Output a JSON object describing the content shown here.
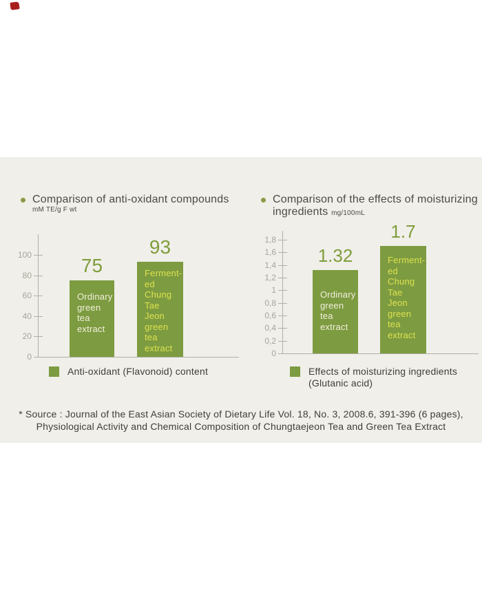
{
  "colors": {
    "panel_bg": "#f0efe9",
    "bar_green": "#7d9b40",
    "bullet_green": "#8a9a45",
    "value_green": "#7f9d3c",
    "bar_text_cream": "#f2f0df",
    "bar_text_yellow": "#dce24f",
    "axis_gray": "#b0afa7",
    "tick_gray": "#a5a49c",
    "title_text": "#4b4b46",
    "body_text": "#3e3e39",
    "red_mark": "#a81e1c"
  },
  "chart_data": [
    {
      "type": "bar",
      "title": "Comparison of anti-oxidant compounds",
      "unit": "mM TE/g F wt",
      "categories": [
        "Ordinary green tea extract",
        "Fermented Chung Tae Jeon green tea extract"
      ],
      "values": [
        75,
        93
      ],
      "ylim": [
        0,
        100
      ],
      "yticks": [
        0,
        20,
        40,
        60,
        80,
        100
      ],
      "ytick_labels": [
        "0",
        "20",
        "40",
        "60",
        "80",
        "100"
      ],
      "grid": false,
      "legend_position": "bottom",
      "legend": "Anti-oxidant (Flavonoid) content",
      "legend_lines": [
        "Anti-oxidant (Flavonoid) content"
      ],
      "bars": [
        {
          "category": "Ordinary green tea extract",
          "value": 75,
          "value_label": "75",
          "lines": [
            "Ordinary",
            "green",
            "tea",
            "extract"
          ]
        },
        {
          "category": "Fermented Chung Tae Jeon green tea extract",
          "value": 93,
          "value_label": "93",
          "lines": [
            "Ferment-",
            "ed",
            "Chung",
            "Tae",
            "Jeon",
            "green",
            "tea",
            "extract"
          ]
        }
      ]
    },
    {
      "type": "bar",
      "title": "Comparison of the effects of moisturizing ingredients",
      "title_line1": "Comparison of the effects of moisturizing",
      "title_line2": "ingredients",
      "unit": "mg/100mL",
      "categories": [
        "Ordinary green tea extract",
        "Fermented Chung Tae Jeon green tea extract"
      ],
      "values": [
        1.32,
        1.7
      ],
      "ylim": [
        0,
        1.8
      ],
      "yticks": [
        0,
        0.2,
        0.4,
        0.6,
        0.8,
        1,
        1.2,
        1.4,
        1.6,
        1.8
      ],
      "ytick_labels": [
        "0",
        "0,2",
        "0,4",
        "0,6",
        "0,8",
        "1",
        "1,2",
        "1,4",
        "1,6",
        "1,8"
      ],
      "grid": false,
      "legend_position": "bottom",
      "legend": "Effects of moisturizing ingredients (Glutanic acid)",
      "legend_lines": [
        "Effects of moisturizing ingredients",
        "(Glutanic acid)"
      ],
      "bars": [
        {
          "category": "Ordinary green tea extract",
          "value": 1.32,
          "value_label": "1.32",
          "lines": [
            "Ordinary",
            "green",
            "tea",
            "extract"
          ]
        },
        {
          "category": "Fermented Chung Tae Jeon green tea extract",
          "value": 1.7,
          "value_label": "1.7",
          "lines": [
            "Ferment-",
            "ed",
            "Chung",
            "Tae",
            "Jeon",
            "green",
            "tea",
            "extract"
          ]
        }
      ]
    }
  ],
  "source": {
    "line1": "* Source : Journal of the East Asian Society of Dietary Life Vol. 18, No. 3, 2008.6, 391-396 (6 pages),",
    "line2": "Physiological Activity and Chemical Composition of Chungtaejeon Tea and Green Tea Extract"
  }
}
